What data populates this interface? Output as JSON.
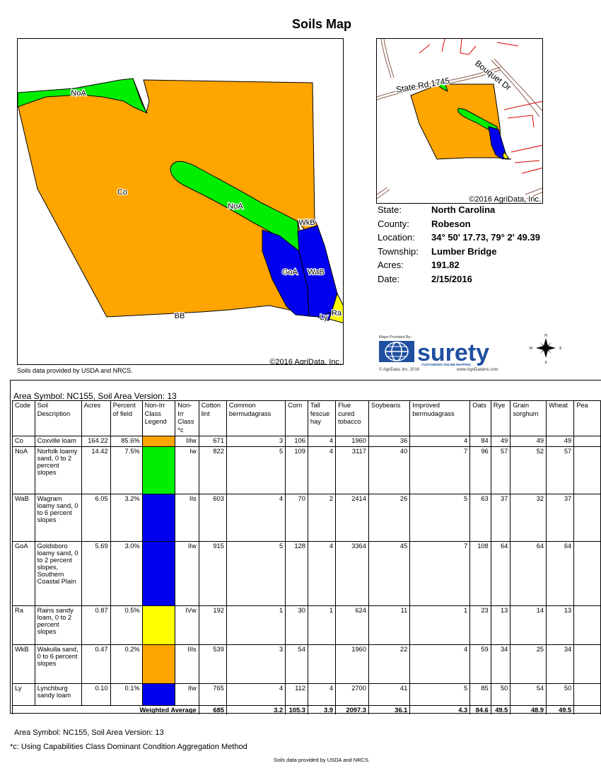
{
  "title": "Soils Map",
  "main_map": {
    "copyright": "©2016 AgriData, Inc.",
    "labels": [
      "NoA",
      "Co",
      "NoA",
      "WkB",
      "GoA",
      "WaB",
      "BB",
      "Ly",
      "Ra"
    ],
    "colors": {
      "Co": "#ffa500",
      "NoA": "#00ee00",
      "WaB": "#0000ee",
      "GoA": "#0000ee",
      "Ra": "#ffff00",
      "WkB": "#ffa500",
      "Ly": "#0000ee"
    }
  },
  "soils_note": "Soils data provided by USDA and NRCS.",
  "location_map": {
    "copyright": "©2016 AgriData, Inc.",
    "road_labels": [
      "State Rd 1745",
      "Bouquet Dr"
    ]
  },
  "info": {
    "state_label": "State:",
    "state": "North Carolina",
    "county_label": "County:",
    "county": "Robeson",
    "location_label": "Location:",
    "location": "34° 50' 17.73,  79° 2' 49.39",
    "township_label": "Township:",
    "township": "Lumber Bridge",
    "acres_label": "Acres:",
    "acres": "191.82",
    "date_label": "Date:",
    "date": "2/15/2016"
  },
  "logo": {
    "provided_by": "Maps Provided By:",
    "brand": "surety",
    "tagline": "CUSTOMIZED ONLINE MAPPING",
    "copyright": "© AgriData, Inc. 2016",
    "url": "www.AgriDataInc.com",
    "compass": [
      "N",
      "S",
      "E",
      "W"
    ]
  },
  "table": {
    "area_line": "Area Symbol: NC155, Soil Area Version: 13",
    "headers": [
      "Code",
      "Soil Description",
      "Acres",
      "Percent of field",
      "Non-Irr Class Legend",
      "Non-Irr Class *c",
      "Cotton lint",
      "Common bermudagrass",
      "Corn",
      "Tall fescue hay",
      "Flue cured tobacco",
      "Soybeans",
      "Improved bermudagrass",
      "Oats",
      "Rye",
      "Grain sorghum",
      "Wheat",
      "Pea"
    ],
    "rows": [
      {
        "code": "Co",
        "desc": "Coxville loam",
        "acres": "164.22",
        "pct": "85.6%",
        "color": "#ffa500",
        "cls": "IIIw",
        "cotton": "671",
        "cberm": "3",
        "corn": "106",
        "fescue": "4",
        "tobacco": "1960",
        "soy": "36",
        "iberm": "4",
        "oats": "84",
        "rye": "49",
        "sorghum": "49",
        "wheat": "49"
      },
      {
        "code": "NoA",
        "desc": "Norfolk loamy sand, 0 to 2 percent slopes",
        "acres": "14.42",
        "pct": "7.5%",
        "color": "#00ee00",
        "cls": "Iw",
        "cotton": "822",
        "cberm": "5",
        "corn": "109",
        "fescue": "4",
        "tobacco": "3117",
        "soy": "40",
        "iberm": "7",
        "oats": "96",
        "rye": "57",
        "sorghum": "52",
        "wheat": "57"
      },
      {
        "code": "WaB",
        "desc": "Wagram loamy sand, 0 to 6 percent slopes",
        "acres": "6.05",
        "pct": "3.2%",
        "color": "#0000ee",
        "cls": "IIs",
        "cotton": "603",
        "cberm": "4",
        "corn": "70",
        "fescue": "2",
        "tobacco": "2414",
        "soy": "26",
        "iberm": "5",
        "oats": "63",
        "rye": "37",
        "sorghum": "32",
        "wheat": "37"
      },
      {
        "code": "GoA",
        "desc": "Goldsboro loamy sand, 0 to 2 percent slopes, Southern Coastal Plain",
        "acres": "5.69",
        "pct": "3.0%",
        "color": "#0000ee",
        "cls": "IIw",
        "cotton": "915",
        "cberm": "5",
        "corn": "128",
        "fescue": "4",
        "tobacco": "3364",
        "soy": "45",
        "iberm": "7",
        "oats": "108",
        "rye": "64",
        "sorghum": "64",
        "wheat": "64"
      },
      {
        "code": "Ra",
        "desc": "Rains sandy loam, 0 to 2 percent slopes",
        "acres": "0.87",
        "pct": "0.5%",
        "color": "#ffff00",
        "cls": "IVw",
        "cotton": "192",
        "cberm": "1",
        "corn": "30",
        "fescue": "1",
        "tobacco": "624",
        "soy": "11",
        "iberm": "1",
        "oats": "23",
        "rye": "13",
        "sorghum": "14",
        "wheat": "13"
      },
      {
        "code": "WkB",
        "desc": "Wakulla sand, 0 to 6 percent slopes",
        "acres": "0.47",
        "pct": "0.2%",
        "color": "#ffa500",
        "cls": "IIIs",
        "cotton": "539",
        "cberm": "3",
        "corn": "54",
        "fescue": "",
        "tobacco": "1960",
        "soy": "22",
        "iberm": "4",
        "oats": "59",
        "rye": "34",
        "sorghum": "25",
        "wheat": "34"
      },
      {
        "code": "Ly",
        "desc": "Lynchburg sandy loam",
        "acres": "0.10",
        "pct": "0.1%",
        "color": "#0000ee",
        "cls": "IIw",
        "cotton": "765",
        "cberm": "4",
        "corn": "112",
        "fescue": "4",
        "tobacco": "2700",
        "soy": "41",
        "iberm": "5",
        "oats": "85",
        "rye": "50",
        "sorghum": "54",
        "wheat": "50"
      }
    ],
    "weighted": {
      "label": "Weighted Average",
      "cotton": "685",
      "cberm": "3.2",
      "corn": "105.3",
      "fescue": "3.9",
      "tobacco": "2097.3",
      "soy": "36.1",
      "iberm": "4.3",
      "oats": "84.6",
      "rye": "49.5",
      "sorghum": "48.9",
      "wheat": "49.5"
    }
  },
  "footer": {
    "area_line": "Area Symbol: NC155, Soil Area Version: 13",
    "c_note": "*c:  Using Capabilities Class Dominant Condition Aggregation Method",
    "soils_note": "Soils data provided by USDA and NRCS."
  }
}
